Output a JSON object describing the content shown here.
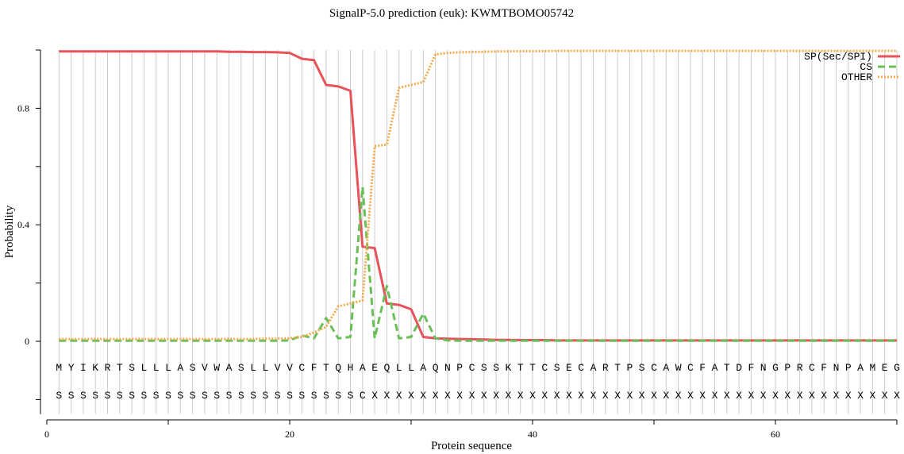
{
  "chart_data": {
    "type": "line",
    "title": "SignalP-5.0 prediction (euk):  KWMTBOMO05742",
    "xlabel": "Protein sequence",
    "ylabel": "Probability",
    "xlim": [
      0,
      70
    ],
    "ylim": [
      -0.25,
      1.0
    ],
    "x_ticks": [
      0,
      20,
      40,
      60
    ],
    "x_tick_labels": [
      "0",
      "20",
      "40",
      "60"
    ],
    "y_ticks": [
      0,
      0.4,
      0.8
    ],
    "y_tick_labels": [
      "0",
      "0.4",
      "0.8"
    ],
    "grid": "vertical lines at each residue",
    "legend_position": "top-right",
    "sequence": "MYIKRTSLLLASVWASLLVVCFTQHAEQLLAQNPCSSKTTCSECARTPSCAWCFATDFNGPRCFNPAMEG",
    "annotation": "SSSSSSSSSSSSSSSSSSSSSSSSSCXXXXXXXXXXXXXXXXXXXXXXXXXXXXXXXXXXXXXXXXXXXX",
    "x": [
      1,
      2,
      3,
      4,
      5,
      6,
      7,
      8,
      9,
      10,
      11,
      12,
      13,
      14,
      15,
      16,
      17,
      18,
      19,
      20,
      21,
      22,
      23,
      24,
      25,
      26,
      27,
      28,
      29,
      30,
      31,
      32,
      33,
      34,
      35,
      36,
      37,
      38,
      39,
      40,
      41,
      42,
      43,
      44,
      45,
      46,
      47,
      48,
      49,
      50,
      51,
      52,
      53,
      54,
      55,
      56,
      57,
      58,
      59,
      60,
      61,
      62,
      63,
      64,
      65,
      66,
      67,
      68,
      69,
      70
    ],
    "series": [
      {
        "name": "SP(Sec/SPI)",
        "color": "#e8525a",
        "style": "solid",
        "values": [
          0.995,
          0.995,
          0.995,
          0.995,
          0.995,
          0.995,
          0.995,
          0.995,
          0.995,
          0.995,
          0.995,
          0.995,
          0.995,
          0.995,
          0.994,
          0.994,
          0.993,
          0.993,
          0.992,
          0.99,
          0.97,
          0.965,
          0.88,
          0.875,
          0.86,
          0.325,
          0.32,
          0.13,
          0.125,
          0.11,
          0.015,
          0.01,
          0.009,
          0.008,
          0.007,
          0.006,
          0.005,
          0.005,
          0.004,
          0.004,
          0.004,
          0.003,
          0.003,
          0.003,
          0.003,
          0.003,
          0.003,
          0.003,
          0.003,
          0.003,
          0.003,
          0.003,
          0.003,
          0.003,
          0.003,
          0.003,
          0.003,
          0.003,
          0.003,
          0.003,
          0.003,
          0.003,
          0.003,
          0.003,
          0.003,
          0.003,
          0.003,
          0.003,
          0.003,
          0.003
        ]
      },
      {
        "name": "CS",
        "color": "#6bbf59",
        "style": "dashed",
        "values": [
          0.002,
          0.002,
          0.002,
          0.002,
          0.002,
          0.002,
          0.002,
          0.002,
          0.002,
          0.002,
          0.002,
          0.002,
          0.002,
          0.002,
          0.002,
          0.002,
          0.002,
          0.002,
          0.002,
          0.003,
          0.02,
          0.01,
          0.08,
          0.01,
          0.015,
          0.53,
          0.01,
          0.19,
          0.01,
          0.015,
          0.095,
          0.01,
          0.003,
          0.002,
          0.002,
          0.002,
          0.002,
          0.002,
          0.002,
          0.002,
          0.002,
          0.002,
          0.002,
          0.002,
          0.002,
          0.002,
          0.002,
          0.002,
          0.002,
          0.002,
          0.002,
          0.002,
          0.002,
          0.002,
          0.002,
          0.002,
          0.002,
          0.002,
          0.002,
          0.002,
          0.002,
          0.002,
          0.002,
          0.002,
          0.002,
          0.002,
          0.002,
          0.002,
          0.002,
          0.002
        ]
      },
      {
        "name": "OTHER",
        "color": "#f4a94c",
        "style": "dotted",
        "values": [
          0.008,
          0.008,
          0.008,
          0.008,
          0.008,
          0.008,
          0.008,
          0.008,
          0.008,
          0.008,
          0.008,
          0.008,
          0.008,
          0.008,
          0.008,
          0.008,
          0.008,
          0.009,
          0.009,
          0.01,
          0.015,
          0.03,
          0.05,
          0.12,
          0.13,
          0.14,
          0.67,
          0.675,
          0.87,
          0.88,
          0.89,
          0.985,
          0.99,
          0.992,
          0.993,
          0.994,
          0.995,
          0.995,
          0.996,
          0.996,
          0.996,
          0.997,
          0.997,
          0.997,
          0.997,
          0.997,
          0.997,
          0.997,
          0.997,
          0.997,
          0.997,
          0.997,
          0.997,
          0.997,
          0.997,
          0.997,
          0.997,
          0.997,
          0.997,
          0.997,
          0.997,
          0.997,
          0.997,
          0.997,
          0.997,
          0.997,
          0.997,
          0.997,
          0.997,
          0.997
        ]
      }
    ]
  }
}
